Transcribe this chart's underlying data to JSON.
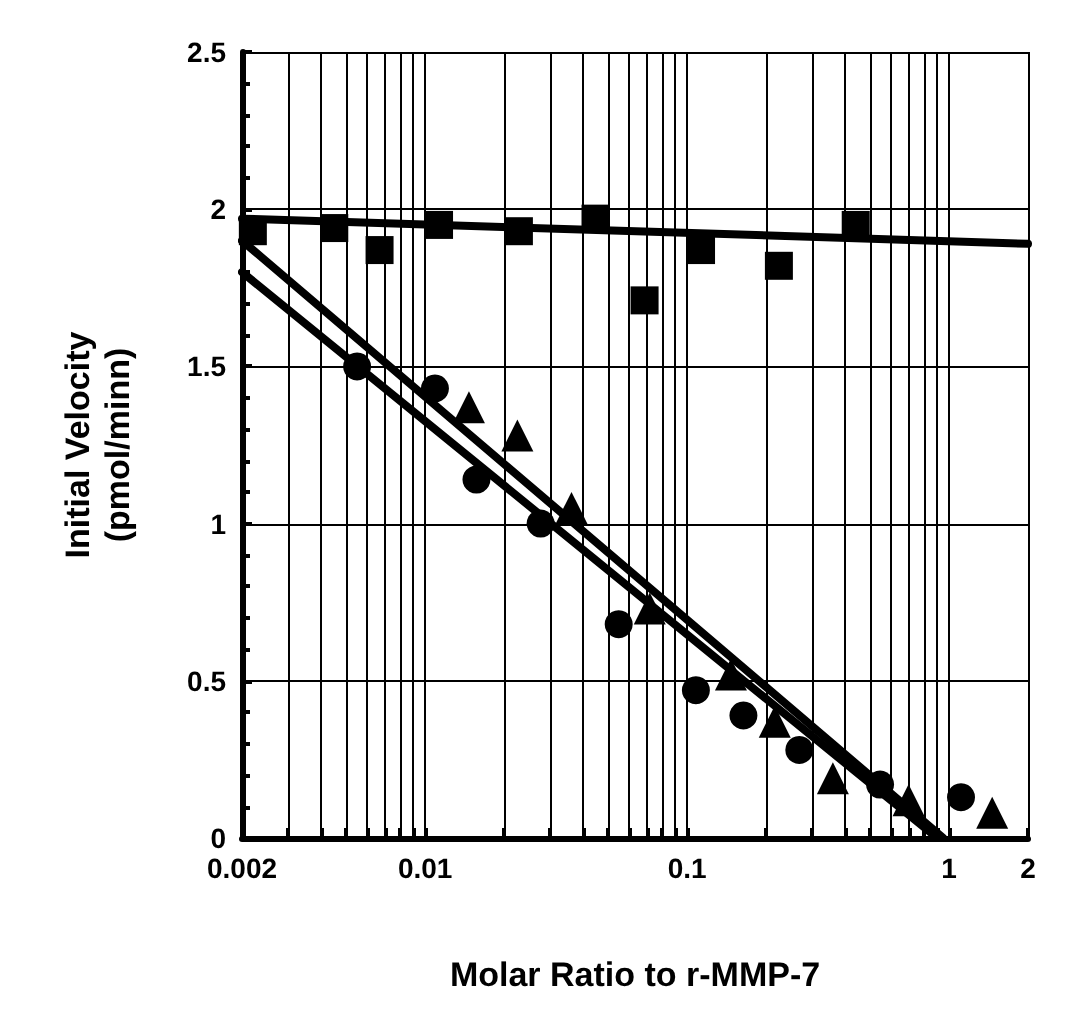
{
  "chart_data": {
    "type": "scatter",
    "xlabel": "Molar Ratio to r-MMP-7",
    "ylabel": "Initial Velocity\n(pmol/minn)",
    "log": "x",
    "grid": true,
    "xlim": [
      0.002,
      2
    ],
    "xticks": [
      0.002,
      0.01,
      0.1,
      1,
      2
    ],
    "ylim": [
      0,
      2.5
    ],
    "yticks": [
      0,
      0.5,
      1,
      1.5,
      2,
      2.5
    ],
    "series": [
      {
        "marker": "square",
        "color": "#000000",
        "x": [
          0.0022,
          0.0045,
          0.0067,
          0.0113,
          0.0228,
          0.0447,
          0.0688,
          0.113,
          0.224,
          0.44
        ],
        "values": [
          1.93,
          1.94,
          1.87,
          1.95,
          1.93,
          1.97,
          1.71,
          1.87,
          1.82,
          1.95
        ]
      },
      {
        "marker": "circle",
        "color": "#000000",
        "x": [
          0.0055,
          0.0109,
          0.0157,
          0.0276,
          0.0548,
          0.108,
          0.164,
          0.268,
          0.545,
          1.11
        ],
        "values": [
          1.5,
          1.43,
          1.14,
          1.0,
          0.68,
          0.47,
          0.39,
          0.28,
          0.17,
          0.13
        ]
      },
      {
        "marker": "triangle",
        "color": "#000000",
        "x": [
          0.0147,
          0.0225,
          0.0362,
          0.072,
          0.147,
          0.216,
          0.36,
          0.7,
          1.46
        ],
        "values": [
          1.37,
          1.28,
          1.05,
          0.73,
          0.52,
          0.37,
          0.19,
          0.12,
          0.08
        ]
      },
      {
        "type": "line",
        "marker": "none",
        "line_style": "solid",
        "color": "#000000",
        "x": [
          0.002,
          2
        ],
        "values": [
          1.97,
          1.89
        ]
      },
      {
        "type": "line",
        "marker": "none",
        "line_style": "solid",
        "color": "#000000",
        "x": [
          0.002,
          0.95
        ],
        "values": [
          1.9,
          0
        ]
      },
      {
        "type": "line",
        "marker": "none",
        "line_style": "solid",
        "color": "#000000",
        "x": [
          0.002,
          0.9
        ],
        "values": [
          1.8,
          0
        ]
      }
    ]
  }
}
